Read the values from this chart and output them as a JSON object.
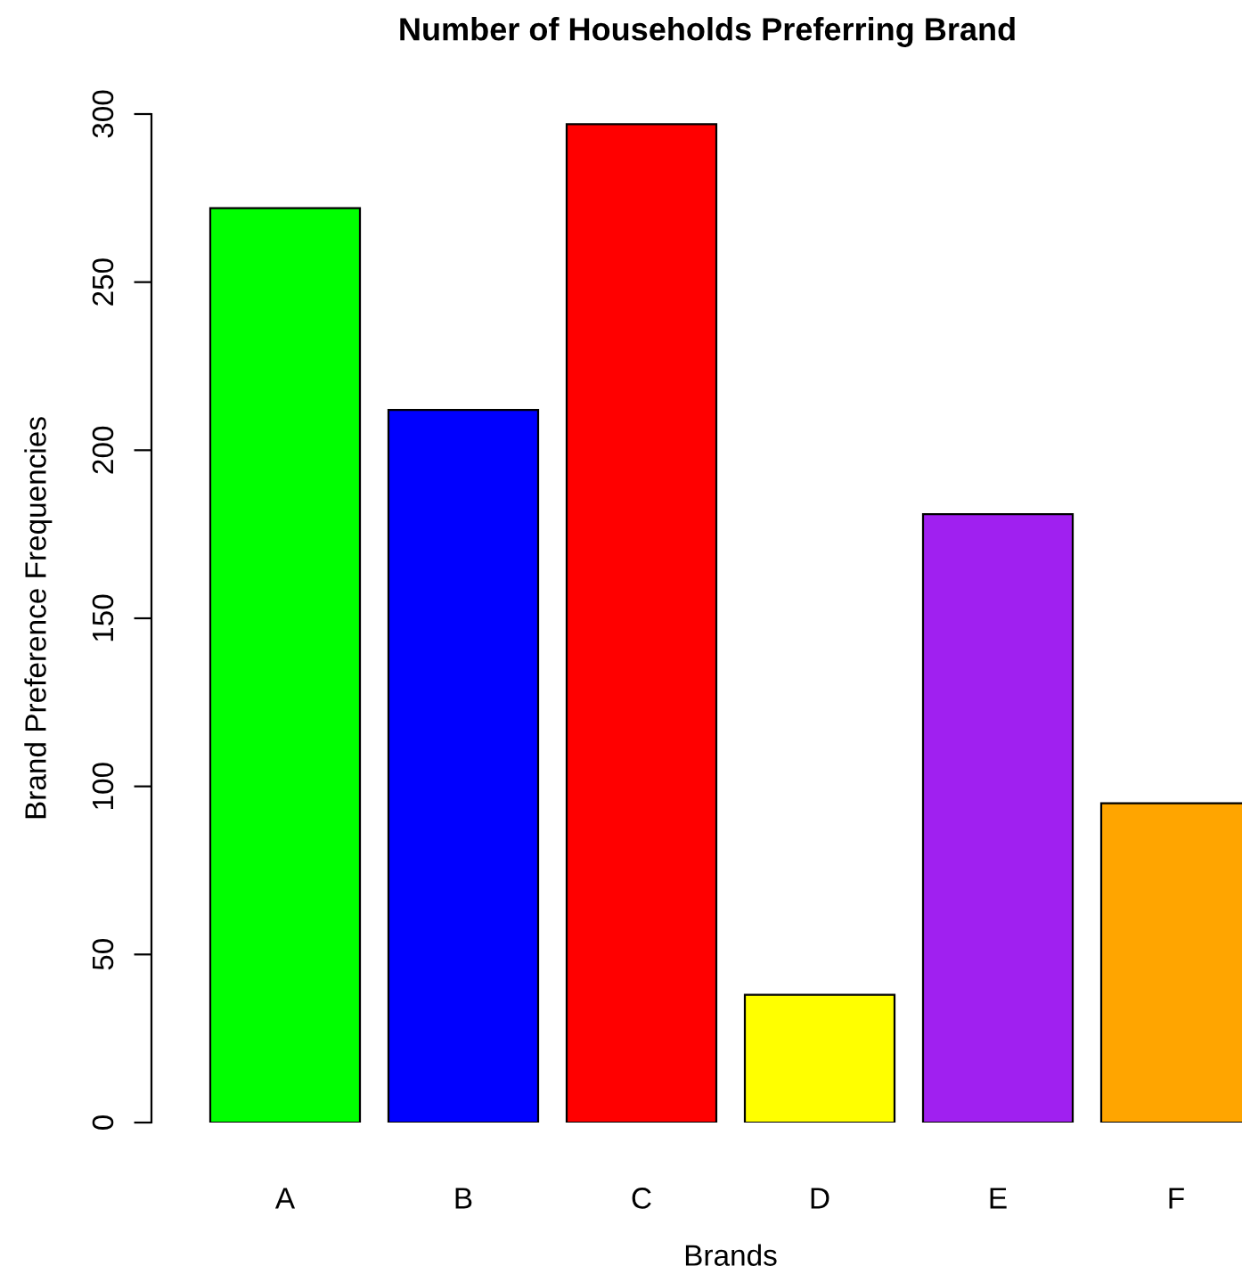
{
  "chart_data": {
    "type": "bar",
    "title": "Number of Households Preferring Brand",
    "xlabel": "Brands",
    "ylabel": "Brand Preference Frequencies",
    "categories": [
      "A",
      "B",
      "C",
      "D",
      "E",
      "F"
    ],
    "values": [
      272,
      212,
      297,
      38,
      181,
      95
    ],
    "colors": [
      "#00ff00",
      "#0000ff",
      "#ff0000",
      "#ffff00",
      "#a020f0",
      "#ffa500"
    ],
    "ylim": [
      0,
      300
    ],
    "yticks": [
      0,
      50,
      100,
      150,
      200,
      250,
      300
    ],
    "grid": false,
    "legend": false
  }
}
